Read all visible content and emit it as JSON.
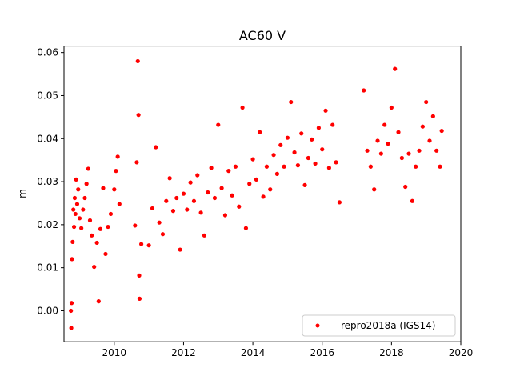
{
  "chart_data": {
    "type": "scatter",
    "title": "AC60 V",
    "xlabel": "",
    "ylabel": "m",
    "xlim": [
      2008.55,
      2020.0
    ],
    "ylim": [
      -0.0072,
      0.0615
    ],
    "x_ticks": [
      2010,
      2012,
      2014,
      2016,
      2018,
      2020
    ],
    "x_tick_labels": [
      "2010",
      "2012",
      "2014",
      "2016",
      "2018",
      "2020"
    ],
    "y_ticks": [
      0.0,
      0.01,
      0.02,
      0.03,
      0.04,
      0.05,
      0.06
    ],
    "y_tick_labels": [
      "0.00",
      "0.01",
      "0.02",
      "0.03",
      "0.04",
      "0.05",
      "0.06"
    ],
    "grid": false,
    "legend_position": "lower-right",
    "series": [
      {
        "name": "repro2018a (IGS14)",
        "color": "#ff0000",
        "marker": "circle",
        "points": [
          [
            2008.75,
            0.0
          ],
          [
            2008.76,
            -0.004
          ],
          [
            2008.77,
            0.0018
          ],
          [
            2008.78,
            0.012
          ],
          [
            2008.8,
            0.016
          ],
          [
            2008.82,
            0.0235
          ],
          [
            2008.84,
            0.0195
          ],
          [
            2008.86,
            0.0262
          ],
          [
            2008.88,
            0.0225
          ],
          [
            2008.9,
            0.0305
          ],
          [
            2008.93,
            0.0248
          ],
          [
            2008.96,
            0.0282
          ],
          [
            2009.0,
            0.0215
          ],
          [
            2009.05,
            0.0192
          ],
          [
            2009.1,
            0.0235
          ],
          [
            2009.15,
            0.0262
          ],
          [
            2009.2,
            0.0295
          ],
          [
            2009.25,
            0.033
          ],
          [
            2009.3,
            0.021
          ],
          [
            2009.35,
            0.0175
          ],
          [
            2009.42,
            0.0102
          ],
          [
            2009.5,
            0.0158
          ],
          [
            2009.55,
            0.0022
          ],
          [
            2009.6,
            0.019
          ],
          [
            2009.68,
            0.0285
          ],
          [
            2009.75,
            0.0132
          ],
          [
            2009.82,
            0.0195
          ],
          [
            2009.9,
            0.0225
          ],
          [
            2010.0,
            0.0282
          ],
          [
            2010.05,
            0.0325
          ],
          [
            2010.1,
            0.0358
          ],
          [
            2010.15,
            0.0248
          ],
          [
            2010.6,
            0.0198
          ],
          [
            2010.65,
            0.0345
          ],
          [
            2010.68,
            0.058
          ],
          [
            2010.7,
            0.0455
          ],
          [
            2010.72,
            0.0082
          ],
          [
            2010.73,
            0.0028
          ],
          [
            2010.78,
            0.0155
          ],
          [
            2011.0,
            0.0152
          ],
          [
            2011.1,
            0.0238
          ],
          [
            2011.2,
            0.038
          ],
          [
            2011.3,
            0.0205
          ],
          [
            2011.4,
            0.0178
          ],
          [
            2011.5,
            0.0255
          ],
          [
            2011.6,
            0.0308
          ],
          [
            2011.7,
            0.0232
          ],
          [
            2011.8,
            0.0262
          ],
          [
            2011.9,
            0.0142
          ],
          [
            2012.0,
            0.0272
          ],
          [
            2012.1,
            0.0235
          ],
          [
            2012.2,
            0.0298
          ],
          [
            2012.3,
            0.0255
          ],
          [
            2012.4,
            0.0315
          ],
          [
            2012.5,
            0.0228
          ],
          [
            2012.6,
            0.0175
          ],
          [
            2012.7,
            0.0275
          ],
          [
            2012.8,
            0.0332
          ],
          [
            2012.9,
            0.0262
          ],
          [
            2013.0,
            0.0432
          ],
          [
            2013.1,
            0.0285
          ],
          [
            2013.2,
            0.0222
          ],
          [
            2013.3,
            0.0325
          ],
          [
            2013.4,
            0.0268
          ],
          [
            2013.5,
            0.0335
          ],
          [
            2013.6,
            0.0242
          ],
          [
            2013.7,
            0.0472
          ],
          [
            2013.8,
            0.0192
          ],
          [
            2013.9,
            0.0295
          ],
          [
            2014.0,
            0.0352
          ],
          [
            2014.1,
            0.0305
          ],
          [
            2014.2,
            0.0415
          ],
          [
            2014.3,
            0.0265
          ],
          [
            2014.4,
            0.0335
          ],
          [
            2014.5,
            0.0282
          ],
          [
            2014.6,
            0.0362
          ],
          [
            2014.7,
            0.0318
          ],
          [
            2014.8,
            0.0385
          ],
          [
            2014.9,
            0.0335
          ],
          [
            2015.0,
            0.0402
          ],
          [
            2015.1,
            0.0485
          ],
          [
            2015.2,
            0.0368
          ],
          [
            2015.3,
            0.0338
          ],
          [
            2015.4,
            0.0412
          ],
          [
            2015.5,
            0.0292
          ],
          [
            2015.6,
            0.0355
          ],
          [
            2015.7,
            0.0398
          ],
          [
            2015.8,
            0.0342
          ],
          [
            2015.9,
            0.0425
          ],
          [
            2016.0,
            0.0375
          ],
          [
            2016.1,
            0.0465
          ],
          [
            2016.2,
            0.0332
          ],
          [
            2016.3,
            0.0432
          ],
          [
            2016.4,
            0.0345
          ],
          [
            2016.5,
            0.0252
          ],
          [
            2017.2,
            0.0512
          ],
          [
            2017.3,
            0.0372
          ],
          [
            2017.4,
            0.0335
          ],
          [
            2017.5,
            0.0282
          ],
          [
            2017.6,
            0.0395
          ],
          [
            2017.7,
            0.0365
          ],
          [
            2017.8,
            0.0432
          ],
          [
            2017.9,
            0.0388
          ],
          [
            2018.0,
            0.0472
          ],
          [
            2018.1,
            0.0562
          ],
          [
            2018.2,
            0.0415
          ],
          [
            2018.3,
            0.0355
          ],
          [
            2018.4,
            0.0288
          ],
          [
            2018.5,
            0.0365
          ],
          [
            2018.6,
            0.0255
          ],
          [
            2018.7,
            0.0335
          ],
          [
            2018.8,
            0.0372
          ],
          [
            2018.9,
            0.0428
          ],
          [
            2019.0,
            0.0485
          ],
          [
            2019.1,
            0.0395
          ],
          [
            2019.2,
            0.0452
          ],
          [
            2019.3,
            0.0372
          ],
          [
            2019.4,
            0.0335
          ],
          [
            2019.45,
            0.0418
          ]
        ]
      }
    ]
  }
}
